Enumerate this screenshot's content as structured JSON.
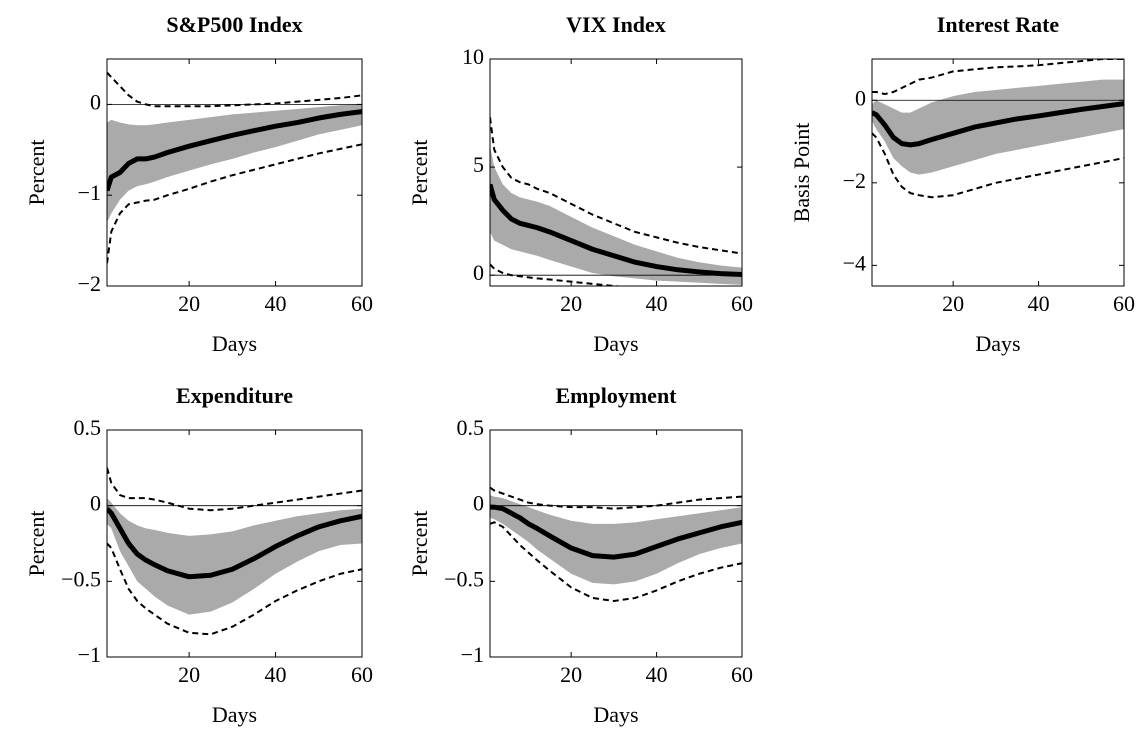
{
  "chart_data": [
    {
      "type": "line",
      "title": "S&P500 Index",
      "x_label": "Days",
      "y_label": "Percent",
      "x": [
        1,
        2,
        4,
        6,
        8,
        10,
        12,
        15,
        20,
        25,
        30,
        35,
        40,
        45,
        50,
        55,
        60
      ],
      "xlim": [
        1,
        60
      ],
      "xticks": [
        20,
        40,
        60
      ],
      "ylim": [
        -2,
        0.5
      ],
      "yticks": [
        {
          "value": -2,
          "label": "−2"
        },
        {
          "value": -1,
          "label": "−1"
        },
        0
      ],
      "hline": 0,
      "bands": [
        {
          "color": "#aaaaaa",
          "upper": [
            -0.2,
            -0.17,
            -0.2,
            -0.22,
            -0.23,
            -0.23,
            -0.22,
            -0.2,
            -0.17,
            -0.14,
            -0.11,
            -0.09,
            -0.07,
            -0.05,
            -0.03,
            -0.01,
            0.0
          ],
          "lower": [
            -1.3,
            -1.2,
            -1.05,
            -0.95,
            -0.9,
            -0.88,
            -0.85,
            -0.8,
            -0.73,
            -0.66,
            -0.6,
            -0.53,
            -0.47,
            -0.4,
            -0.33,
            -0.28,
            -0.23
          ]
        }
      ],
      "series": [
        {
          "color": "#000000",
          "dashed": false,
          "values": [
            -0.95,
            -0.8,
            -0.75,
            -0.65,
            -0.6,
            -0.6,
            -0.58,
            -0.53,
            -0.46,
            -0.4,
            -0.34,
            -0.29,
            -0.24,
            -0.2,
            -0.15,
            -0.11,
            -0.08
          ]
        },
        {
          "color": "#000000",
          "dashed": true,
          "values": [
            0.35,
            0.3,
            0.2,
            0.1,
            0.03,
            0.0,
            -0.02,
            -0.02,
            -0.02,
            -0.02,
            -0.01,
            0,
            0.01,
            0.03,
            0.05,
            0.07,
            0.1
          ]
        },
        {
          "color": "#000000",
          "dashed": true,
          "values": [
            -1.75,
            -1.4,
            -1.2,
            -1.1,
            -1.08,
            -1.06,
            -1.05,
            -1.0,
            -0.93,
            -0.85,
            -0.78,
            -0.72,
            -0.66,
            -0.6,
            -0.54,
            -0.49,
            -0.44
          ]
        }
      ]
    },
    {
      "type": "line",
      "title": "VIX Index",
      "x_label": "Days",
      "y_label": "Percent",
      "x": [
        1,
        2,
        4,
        6,
        8,
        10,
        12,
        15,
        20,
        25,
        30,
        35,
        40,
        45,
        50,
        55,
        60
      ],
      "xlim": [
        1,
        60
      ],
      "xticks": [
        20,
        40,
        60
      ],
      "ylim": [
        -0.5,
        10
      ],
      "yticks": [
        0,
        5,
        10
      ],
      "hline": 0,
      "bands": [
        {
          "color": "#aaaaaa",
          "upper": [
            6.0,
            5.0,
            4.2,
            3.8,
            3.6,
            3.5,
            3.4,
            3.2,
            2.7,
            2.2,
            1.8,
            1.4,
            1.1,
            0.8,
            0.6,
            0.45,
            0.35
          ],
          "lower": [
            2.0,
            1.6,
            1.4,
            1.2,
            1.1,
            1.0,
            0.9,
            0.7,
            0.4,
            0.1,
            -0.05,
            -0.15,
            -0.25,
            -0.3,
            -0.35,
            -0.4,
            -0.45
          ]
        }
      ],
      "series": [
        {
          "color": "#000000",
          "dashed": false,
          "values": [
            4.2,
            3.5,
            3.0,
            2.6,
            2.4,
            2.3,
            2.2,
            2.0,
            1.6,
            1.2,
            0.9,
            0.6,
            0.4,
            0.25,
            0.15,
            0.07,
            0.03
          ]
        },
        {
          "color": "#000000",
          "dashed": true,
          "values": [
            7.3,
            5.8,
            5.0,
            4.5,
            4.3,
            4.2,
            4.0,
            3.8,
            3.3,
            2.8,
            2.4,
            2.0,
            1.75,
            1.5,
            1.3,
            1.15,
            1.0
          ]
        },
        {
          "color": "#000000",
          "dashed": true,
          "values": [
            0.5,
            0.3,
            0.1,
            0.0,
            -0.05,
            -0.1,
            -0.15,
            -0.2,
            -0.3,
            -0.4,
            -0.5,
            -0.6,
            -0.65,
            -0.7,
            -0.75,
            -0.8,
            -0.85
          ]
        }
      ]
    },
    {
      "type": "line",
      "title": "Interest Rate",
      "x_label": "Days",
      "y_label": "Basis Point",
      "x": [
        1,
        2,
        4,
        6,
        8,
        10,
        12,
        15,
        20,
        25,
        30,
        35,
        40,
        45,
        50,
        55,
        60
      ],
      "xlim": [
        1,
        60
      ],
      "xticks": [
        20,
        40,
        60
      ],
      "ylim": [
        -4.5,
        1
      ],
      "yticks": [
        {
          "value": -4,
          "label": "−4"
        },
        {
          "value": -2,
          "label": "−2"
        },
        0
      ],
      "hline": 0,
      "bands": [
        {
          "color": "#aaaaaa",
          "upper": [
            -0.1,
            0.0,
            -0.1,
            -0.2,
            -0.3,
            -0.3,
            -0.2,
            -0.05,
            0.1,
            0.2,
            0.25,
            0.3,
            0.35,
            0.4,
            0.45,
            0.5,
            0.5
          ],
          "lower": [
            -0.5,
            -0.7,
            -1.0,
            -1.4,
            -1.6,
            -1.75,
            -1.8,
            -1.75,
            -1.6,
            -1.45,
            -1.3,
            -1.2,
            -1.1,
            -1.0,
            -0.9,
            -0.8,
            -0.7
          ]
        }
      ],
      "series": [
        {
          "color": "#000000",
          "dashed": false,
          "values": [
            -0.3,
            -0.35,
            -0.6,
            -0.9,
            -1.05,
            -1.08,
            -1.05,
            -0.95,
            -0.8,
            -0.65,
            -0.55,
            -0.45,
            -0.38,
            -0.3,
            -0.22,
            -0.15,
            -0.08
          ]
        },
        {
          "color": "#000000",
          "dashed": true,
          "values": [
            0.2,
            0.2,
            0.15,
            0.2,
            0.3,
            0.4,
            0.5,
            0.55,
            0.7,
            0.75,
            0.8,
            0.82,
            0.85,
            0.9,
            0.95,
            1.0,
            1.0
          ]
        },
        {
          "color": "#000000",
          "dashed": true,
          "values": [
            -0.8,
            -0.9,
            -1.3,
            -1.8,
            -2.1,
            -2.25,
            -2.3,
            -2.35,
            -2.3,
            -2.15,
            -2.0,
            -1.9,
            -1.8,
            -1.7,
            -1.6,
            -1.5,
            -1.4
          ]
        }
      ]
    },
    {
      "type": "line",
      "title": "Expenditure",
      "x_label": "Days",
      "y_label": "Percent",
      "x": [
        1,
        2,
        4,
        6,
        8,
        10,
        12,
        15,
        20,
        25,
        30,
        35,
        40,
        45,
        50,
        55,
        60
      ],
      "xlim": [
        1,
        60
      ],
      "xticks": [
        20,
        40,
        60
      ],
      "ylim": [
        -1,
        0.5
      ],
      "yticks": [
        {
          "value": -1,
          "label": "−1"
        },
        {
          "value": -0.5,
          "label": "−0.5"
        },
        0,
        0.5
      ],
      "hline": 0,
      "bands": [
        {
          "color": "#aaaaaa",
          "upper": [
            0.05,
            0.02,
            -0.05,
            -0.1,
            -0.13,
            -0.15,
            -0.16,
            -0.18,
            -0.2,
            -0.19,
            -0.17,
            -0.13,
            -0.1,
            -0.07,
            -0.05,
            -0.03,
            -0.02
          ],
          "lower": [
            -0.12,
            -0.15,
            -0.3,
            -0.4,
            -0.5,
            -0.55,
            -0.6,
            -0.66,
            -0.72,
            -0.7,
            -0.64,
            -0.55,
            -0.45,
            -0.37,
            -0.3,
            -0.26,
            -0.25
          ]
        }
      ],
      "series": [
        {
          "color": "#000000",
          "dashed": false,
          "values": [
            -0.02,
            -0.05,
            -0.15,
            -0.25,
            -0.32,
            -0.36,
            -0.39,
            -0.43,
            -0.47,
            -0.46,
            -0.42,
            -0.35,
            -0.27,
            -0.2,
            -0.14,
            -0.1,
            -0.07
          ]
        },
        {
          "color": "#000000",
          "dashed": true,
          "values": [
            0.25,
            0.15,
            0.07,
            0.05,
            0.05,
            0.05,
            0.04,
            0.02,
            -0.02,
            -0.03,
            -0.02,
            0.0,
            0.02,
            0.04,
            0.06,
            0.08,
            0.1
          ]
        },
        {
          "color": "#000000",
          "dashed": true,
          "values": [
            -0.25,
            -0.28,
            -0.42,
            -0.55,
            -0.63,
            -0.68,
            -0.72,
            -0.78,
            -0.84,
            -0.85,
            -0.8,
            -0.72,
            -0.63,
            -0.56,
            -0.5,
            -0.45,
            -0.42
          ]
        }
      ]
    },
    {
      "type": "line",
      "title": "Employment",
      "x_label": "Days",
      "y_label": "Percent",
      "x": [
        1,
        2,
        4,
        6,
        8,
        10,
        12,
        15,
        20,
        25,
        30,
        35,
        40,
        45,
        50,
        55,
        60
      ],
      "xlim": [
        1,
        60
      ],
      "xticks": [
        20,
        40,
        60
      ],
      "ylim": [
        -1,
        0.5
      ],
      "yticks": [
        {
          "value": -1,
          "label": "−1"
        },
        {
          "value": -0.5,
          "label": "−0.5"
        },
        0,
        0.5
      ],
      "hline": 0,
      "bands": [
        {
          "color": "#aaaaaa",
          "upper": [
            0.07,
            0.06,
            0.05,
            0.03,
            0.01,
            -0.01,
            -0.03,
            -0.06,
            -0.1,
            -0.12,
            -0.12,
            -0.11,
            -0.09,
            -0.07,
            -0.05,
            -0.03,
            -0.01
          ],
          "lower": [
            -0.08,
            -0.09,
            -0.12,
            -0.16,
            -0.2,
            -0.24,
            -0.29,
            -0.35,
            -0.45,
            -0.51,
            -0.52,
            -0.5,
            -0.45,
            -0.38,
            -0.32,
            -0.28,
            -0.25
          ]
        }
      ],
      "series": [
        {
          "color": "#000000",
          "dashed": false,
          "values": [
            -0.01,
            -0.01,
            -0.02,
            -0.05,
            -0.08,
            -0.12,
            -0.15,
            -0.2,
            -0.28,
            -0.33,
            -0.34,
            -0.32,
            -0.27,
            -0.22,
            -0.18,
            -0.14,
            -0.11
          ]
        },
        {
          "color": "#000000",
          "dashed": true,
          "values": [
            0.12,
            0.1,
            0.08,
            0.06,
            0.04,
            0.02,
            0.01,
            0.0,
            -0.01,
            -0.01,
            -0.02,
            -0.01,
            0.0,
            0.02,
            0.04,
            0.05,
            0.06
          ]
        },
        {
          "color": "#000000",
          "dashed": true,
          "values": [
            -0.12,
            -0.11,
            -0.14,
            -0.2,
            -0.26,
            -0.31,
            -0.36,
            -0.43,
            -0.54,
            -0.61,
            -0.63,
            -0.61,
            -0.56,
            -0.5,
            -0.45,
            -0.41,
            -0.38
          ]
        }
      ]
    }
  ]
}
